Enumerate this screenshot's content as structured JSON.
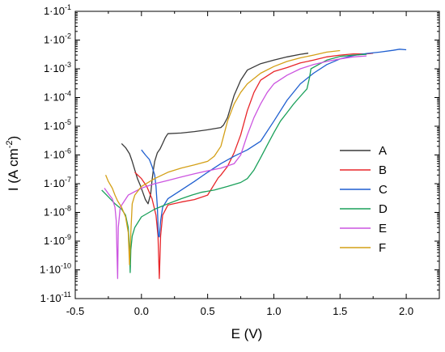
{
  "chart_data": {
    "type": "line",
    "title": "",
    "xlabel": "E (V)",
    "ylabel_main": "I (A cm",
    "ylabel_sup": "-2",
    "ylabel_close": ")",
    "x_axis": {
      "min": -0.5,
      "max": 2.25,
      "scale": "linear",
      "ticks": [
        -0.5,
        0.0,
        0.5,
        1.0,
        1.5,
        2.0
      ],
      "tick_labels": [
        "-0.5",
        "0.0",
        "0.5",
        "1.0",
        "1.5",
        "2.0"
      ]
    },
    "y_axis": {
      "min": 1e-11,
      "max": 0.1,
      "scale": "log",
      "tick_labels": [
        {
          "mant": "1·10",
          "exp": "-11"
        },
        {
          "mant": "1·10",
          "exp": "-10"
        },
        {
          "mant": "1·10",
          "exp": "-9"
        },
        {
          "mant": "1·10",
          "exp": "-8"
        },
        {
          "mant": "1·10",
          "exp": "-7"
        },
        {
          "mant": "1·10",
          "exp": "-6"
        },
        {
          "mant": "1·10",
          "exp": "-5"
        },
        {
          "mant": "1·10",
          "exp": "-4"
        },
        {
          "mant": "1·10",
          "exp": "-3"
        },
        {
          "mant": "1·10",
          "exp": "-2"
        },
        {
          "mant": "1·10",
          "exp": "-1"
        }
      ]
    },
    "grid": false,
    "legend_position": "center-right",
    "series": [
      {
        "name": "A",
        "color": "#3a3a3a",
        "points": [
          [
            -0.15,
            2.5e-06
          ],
          [
            -0.12,
            1.8e-06
          ],
          [
            -0.09,
            1.1e-06
          ],
          [
            -0.07,
            6e-07
          ],
          [
            -0.05,
            3e-07
          ],
          [
            -0.03,
            1.5e-07
          ],
          [
            -0.01,
            9e-08
          ],
          [
            0.01,
            5e-08
          ],
          [
            0.03,
            2.8e-08
          ],
          [
            0.05,
            2e-08
          ],
          [
            0.07,
            4.5e-08
          ],
          [
            0.08,
            1.3e-07
          ],
          [
            0.09,
            3e-07
          ],
          [
            0.1,
            6e-07
          ],
          [
            0.12,
            1.2e-06
          ],
          [
            0.14,
            1.6e-06
          ],
          [
            0.16,
            2.5e-06
          ],
          [
            0.18,
            4e-06
          ],
          [
            0.2,
            5.5e-06
          ],
          [
            0.3,
            5.8e-06
          ],
          [
            0.4,
            6.5e-06
          ],
          [
            0.5,
            7.5e-06
          ],
          [
            0.6,
            9e-06
          ],
          [
            0.62,
            1.1e-05
          ],
          [
            0.65,
            2e-05
          ],
          [
            0.7,
            0.00012
          ],
          [
            0.75,
            0.0004
          ],
          [
            0.8,
            0.0009
          ],
          [
            0.9,
            0.0015
          ],
          [
            1.0,
            0.002
          ],
          [
            1.1,
            0.0026
          ],
          [
            1.2,
            0.0032
          ],
          [
            1.26,
            0.0035
          ]
        ]
      },
      {
        "name": "B",
        "color": "#e8262a",
        "points": [
          [
            -0.05,
            2.5e-07
          ],
          [
            0.0,
            1.5e-07
          ],
          [
            0.04,
            8e-08
          ],
          [
            0.08,
            3e-08
          ],
          [
            0.11,
            8e-09
          ],
          [
            0.125,
            1.5e-09
          ],
          [
            0.135,
            5e-11
          ],
          [
            0.145,
            1.5e-09
          ],
          [
            0.16,
            8e-09
          ],
          [
            0.2,
            1.8e-08
          ],
          [
            0.3,
            2.3e-08
          ],
          [
            0.4,
            2.8e-08
          ],
          [
            0.5,
            4e-08
          ],
          [
            0.58,
            1.6e-07
          ],
          [
            0.6,
            2e-07
          ],
          [
            0.65,
            4e-07
          ],
          [
            0.7,
            1.2e-06
          ],
          [
            0.75,
            5e-06
          ],
          [
            0.8,
            3.5e-05
          ],
          [
            0.85,
            0.00015
          ],
          [
            0.9,
            0.0004
          ],
          [
            1.0,
            0.0008
          ],
          [
            1.1,
            0.0011
          ],
          [
            1.2,
            0.0016
          ],
          [
            1.3,
            0.002
          ],
          [
            1.4,
            0.0026
          ],
          [
            1.5,
            0.003
          ],
          [
            1.6,
            0.0033
          ],
          [
            1.7,
            0.0033
          ],
          [
            1.75,
            0.0035
          ]
        ]
      },
      {
        "name": "C",
        "color": "#1f5fd0",
        "points": [
          [
            0.0,
            1.5e-06
          ],
          [
            0.03,
            1e-06
          ],
          [
            0.06,
            7e-07
          ],
          [
            0.08,
            4e-07
          ],
          [
            0.1,
            2e-07
          ],
          [
            0.11,
            8e-08
          ],
          [
            0.12,
            1.5e-08
          ],
          [
            0.128,
            1.5e-09
          ],
          [
            0.135,
            1.4e-09
          ],
          [
            0.145,
            5e-09
          ],
          [
            0.16,
            1.5e-08
          ],
          [
            0.2,
            3e-08
          ],
          [
            0.3,
            6e-08
          ],
          [
            0.4,
            1.2e-07
          ],
          [
            0.5,
            2.5e-07
          ],
          [
            0.6,
            5e-07
          ],
          [
            0.7,
            9e-07
          ],
          [
            0.8,
            1.5e-06
          ],
          [
            0.9,
            3e-06
          ],
          [
            1.0,
            1.5e-05
          ],
          [
            1.1,
            8e-05
          ],
          [
            1.2,
            0.0003
          ],
          [
            1.3,
            0.0007
          ],
          [
            1.4,
            0.0014
          ],
          [
            1.5,
            0.0022
          ],
          [
            1.6,
            0.0029
          ],
          [
            1.7,
            0.0034
          ],
          [
            1.8,
            0.0038
          ],
          [
            1.9,
            0.0044
          ],
          [
            1.95,
            0.0048
          ],
          [
            2.0,
            0.0046
          ]
        ]
      },
      {
        "name": "D",
        "color": "#1aa05a",
        "points": [
          [
            -0.3,
            6e-08
          ],
          [
            -0.25,
            3.5e-08
          ],
          [
            -0.2,
            2e-08
          ],
          [
            -0.15,
            1.3e-08
          ],
          [
            -0.12,
            8e-09
          ],
          [
            -0.1,
            3e-09
          ],
          [
            -0.09,
            5e-10
          ],
          [
            -0.085,
            8e-11
          ],
          [
            -0.08,
            5e-10
          ],
          [
            -0.07,
            1.5e-09
          ],
          [
            -0.05,
            3e-09
          ],
          [
            0.0,
            7e-09
          ],
          [
            0.1,
            1.3e-08
          ],
          [
            0.2,
            2e-08
          ],
          [
            0.3,
            3e-08
          ],
          [
            0.38,
            4e-08
          ],
          [
            0.45,
            5e-08
          ],
          [
            0.55,
            6e-08
          ],
          [
            0.65,
            8e-08
          ],
          [
            0.75,
            1.1e-07
          ],
          [
            0.8,
            1.5e-07
          ],
          [
            0.85,
            3e-07
          ],
          [
            0.9,
            8e-07
          ],
          [
            0.95,
            2.2e-06
          ],
          [
            1.0,
            6e-06
          ],
          [
            1.05,
            1.5e-05
          ],
          [
            1.1,
            3e-05
          ],
          [
            1.15,
            6e-05
          ],
          [
            1.2,
            0.00011
          ],
          [
            1.25,
            0.0002
          ],
          [
            1.27,
            0.0005
          ],
          [
            1.28,
            0.001
          ],
          [
            1.35,
            0.0015
          ],
          [
            1.4,
            0.002
          ],
          [
            1.5,
            0.0027
          ],
          [
            1.6,
            0.003
          ],
          [
            1.7,
            0.0032
          ]
        ]
      },
      {
        "name": "E",
        "color": "#cc55e0",
        "points": [
          [
            -0.28,
            7e-08
          ],
          [
            -0.25,
            4.5e-08
          ],
          [
            -0.22,
            3e-08
          ],
          [
            -0.2,
            1.5e-08
          ],
          [
            -0.19,
            5e-09
          ],
          [
            -0.185,
            5e-10
          ],
          [
            -0.18,
            5e-11
          ],
          [
            -0.175,
            3e-09
          ],
          [
            -0.16,
            1.5e-08
          ],
          [
            -0.1,
            4e-08
          ],
          [
            0.0,
            7e-08
          ],
          [
            0.1,
            1e-07
          ],
          [
            0.2,
            1.3e-07
          ],
          [
            0.3,
            1.7e-07
          ],
          [
            0.4,
            2.2e-07
          ],
          [
            0.5,
            2.8e-07
          ],
          [
            0.6,
            3.5e-07
          ],
          [
            0.7,
            5e-07
          ],
          [
            0.75,
            1e-06
          ],
          [
            0.8,
            5e-06
          ],
          [
            0.85,
            2e-05
          ],
          [
            0.9,
            6e-05
          ],
          [
            0.95,
            0.00015
          ],
          [
            1.0,
            0.0003
          ],
          [
            1.1,
            0.0006
          ],
          [
            1.2,
            0.001
          ],
          [
            1.3,
            0.0014
          ],
          [
            1.4,
            0.0018
          ],
          [
            1.5,
            0.0022
          ],
          [
            1.6,
            0.0026
          ],
          [
            1.7,
            0.0028
          ]
        ]
      },
      {
        "name": "F",
        "color": "#d4a017",
        "points": [
          [
            -0.27,
            2e-07
          ],
          [
            -0.25,
            1.2e-07
          ],
          [
            -0.22,
            7e-08
          ],
          [
            -0.2,
            4e-08
          ],
          [
            -0.18,
            2.5e-08
          ],
          [
            -0.15,
            1.5e-08
          ],
          [
            -0.12,
            7e-09
          ],
          [
            -0.1,
            2e-09
          ],
          [
            -0.09,
            1.5e-10
          ],
          [
            -0.08,
            2e-09
          ],
          [
            -0.07,
            2e-08
          ],
          [
            -0.05,
            4e-08
          ],
          [
            0.0,
            8e-08
          ],
          [
            0.1,
            1.5e-07
          ],
          [
            0.2,
            2.5e-07
          ],
          [
            0.3,
            3.5e-07
          ],
          [
            0.4,
            4.5e-07
          ],
          [
            0.5,
            6e-07
          ],
          [
            0.55,
            9e-07
          ],
          [
            0.6,
            2e-06
          ],
          [
            0.65,
            1.5e-05
          ],
          [
            0.7,
            6e-05
          ],
          [
            0.75,
            0.00015
          ],
          [
            0.8,
            0.0003
          ],
          [
            0.9,
            0.0007
          ],
          [
            1.0,
            0.0012
          ],
          [
            1.1,
            0.0018
          ],
          [
            1.2,
            0.0024
          ],
          [
            1.3,
            0.003
          ],
          [
            1.4,
            0.0038
          ],
          [
            1.5,
            0.0043
          ]
        ]
      }
    ]
  }
}
